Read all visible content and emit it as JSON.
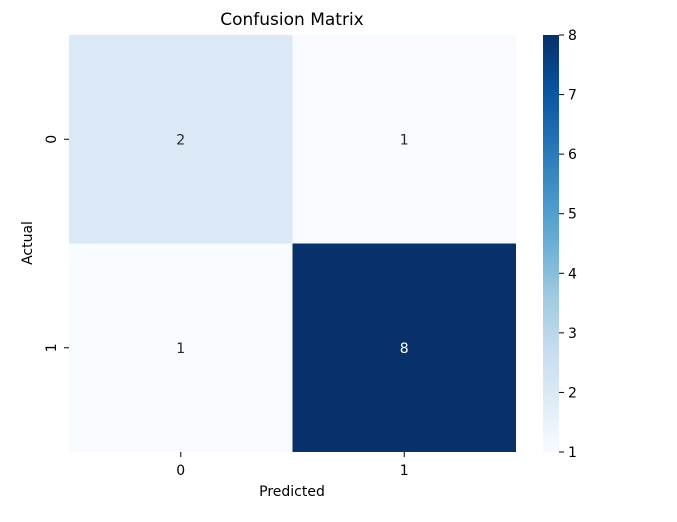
{
  "chart_data": {
    "type": "heatmap",
    "title": "Confusion Matrix",
    "xlabel": "Predicted",
    "ylabel": "Actual",
    "x_categories": [
      "0",
      "1"
    ],
    "y_categories": [
      "0",
      "1"
    ],
    "values": [
      [
        2,
        1
      ],
      [
        1,
        8
      ]
    ],
    "colorbar": {
      "min": 1,
      "max": 8,
      "ticks": [
        "1",
        "2",
        "3",
        "4",
        "5",
        "6",
        "7",
        "8"
      ],
      "colormap": "Blues"
    },
    "colors": {
      "low": "#f7fbff",
      "high": "#08306b",
      "annotation_dark": "#262626",
      "annotation_light": "#ffffff"
    },
    "grid": false
  }
}
